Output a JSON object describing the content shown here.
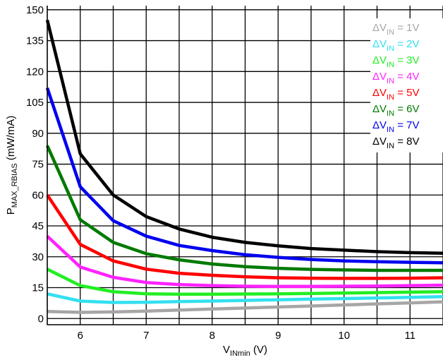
{
  "chart_data": {
    "type": "line",
    "xlabel": {
      "main": "V",
      "sub": "INmin",
      "tail": " (V)"
    },
    "ylabel": {
      "main": "P",
      "sub": "MAX_RBIAS",
      "tail": " (mW/mA)"
    },
    "xlim": [
      5.5,
      11.5
    ],
    "ylim": [
      -3,
      152
    ],
    "xticks": [
      6,
      7,
      8,
      9,
      10,
      11
    ],
    "yticks": [
      0,
      15,
      30,
      45,
      60,
      75,
      90,
      105,
      120,
      135,
      150
    ],
    "grid": true,
    "legend_position": "top-right",
    "series": [
      {
        "label": {
          "prefix": "ΔV",
          "sub": "IN",
          "suffix": " = 1V"
        },
        "color": "#a6a6a6",
        "x": [
          5.5,
          6,
          6.5,
          7,
          7.5,
          8,
          8.5,
          9,
          9.5,
          10,
          10.5,
          11,
          11.5
        ],
        "y": [
          3.4,
          3,
          3.2,
          3.6,
          4.1,
          4.6,
          5.1,
          5.6,
          6.1,
          6.6,
          7.1,
          7.6,
          8.1
        ]
      },
      {
        "label": {
          "prefix": "ΔV",
          "sub": "IN",
          "suffix": " = 2V"
        },
        "color": "#33e0f0",
        "x": [
          5.5,
          6,
          6.5,
          7,
          7.5,
          8,
          8.5,
          9,
          9.5,
          10,
          10.5,
          11,
          11.5
        ],
        "y": [
          12,
          8.5,
          7.8,
          7.9,
          8.2,
          8.5,
          8.8,
          9.1,
          9.4,
          9.7,
          10,
          10.3,
          10.6
        ]
      },
      {
        "label": {
          "prefix": "ΔV",
          "sub": "IN",
          "suffix": " = 3V"
        },
        "color": "#22ee22",
        "x": [
          5.5,
          6,
          6.5,
          7,
          7.5,
          8,
          8.5,
          9,
          9.5,
          10,
          10.5,
          11,
          11.5
        ],
        "y": [
          24,
          16,
          13,
          12,
          11.8,
          11.8,
          11.9,
          12,
          12.2,
          12.4,
          12.6,
          12.8,
          13
        ]
      },
      {
        "label": {
          "prefix": "ΔV",
          "sub": "IN",
          "suffix": " = 4V"
        },
        "color": "#ff22ff",
        "x": [
          5.5,
          6,
          6.5,
          7,
          7.5,
          8,
          8.5,
          9,
          9.5,
          10,
          10.5,
          11,
          11.5
        ],
        "y": [
          40,
          25,
          20,
          17.5,
          16.5,
          16,
          15.7,
          15.6,
          15.6,
          15.7,
          15.8,
          16,
          16.2
        ]
      },
      {
        "label": {
          "prefix": "ΔV",
          "sub": "IN",
          "suffix": " = 5V"
        },
        "color": "#ff0000",
        "x": [
          5.5,
          6,
          6.5,
          7,
          7.5,
          8,
          8.5,
          9,
          9.5,
          10,
          10.5,
          11,
          11.5
        ],
        "y": [
          60,
          36,
          28,
          24,
          22,
          21,
          20.3,
          19.8,
          19.6,
          19.5,
          19.5,
          19.6,
          19.8
        ]
      },
      {
        "label": {
          "prefix": "ΔV",
          "sub": "IN",
          "suffix": " = 6V"
        },
        "color": "#007a00",
        "x": [
          5.5,
          6,
          6.5,
          7,
          7.5,
          8,
          8.5,
          9,
          9.5,
          10,
          10.5,
          11,
          11.5
        ],
        "y": [
          84,
          48,
          37,
          31.5,
          28.5,
          26.5,
          25.2,
          24.4,
          23.9,
          23.6,
          23.4,
          23.4,
          23.4
        ]
      },
      {
        "label": {
          "prefix": "ΔV",
          "sub": "IN",
          "suffix": " = 7V"
        },
        "color": "#0000ee",
        "x": [
          5.5,
          6,
          6.5,
          7,
          7.5,
          8,
          8.5,
          9,
          9.5,
          10,
          10.5,
          11,
          11.5
        ],
        "y": [
          112,
          64,
          47.5,
          40,
          35.5,
          33,
          31,
          29.7,
          28.7,
          28,
          27.6,
          27.3,
          27.1
        ]
      },
      {
        "label": {
          "prefix": "ΔV",
          "sub": "IN",
          "suffix": " = 8V"
        },
        "color": "#000000",
        "x": [
          5.5,
          6,
          6.5,
          7,
          7.5,
          8,
          8.5,
          9,
          9.5,
          10,
          10.5,
          11,
          11.5
        ],
        "y": [
          145,
          80,
          60,
          49.5,
          43.5,
          39.5,
          37,
          35.3,
          34,
          33.2,
          32.5,
          32,
          31.7
        ]
      }
    ]
  }
}
